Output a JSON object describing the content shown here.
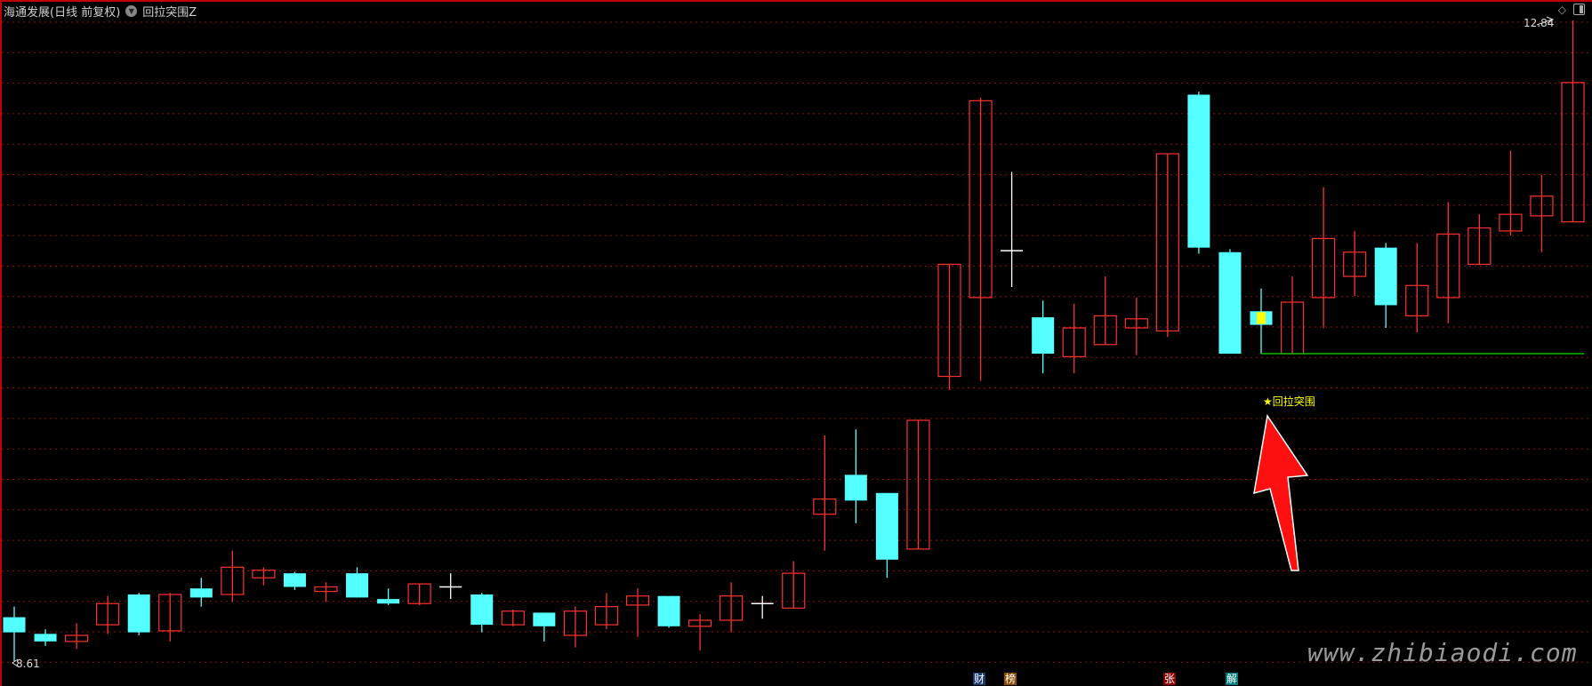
{
  "header": {
    "title": "海通发展(日线 前复权)",
    "indicator": "回拉突围Z"
  },
  "colors": {
    "up": "#ff3030",
    "down": "#54ffff",
    "doji": "#ffffff",
    "grid": "#8b1010",
    "support": "#00c000",
    "signal": "#ffff00",
    "arrow": "#ff1010"
  },
  "icons": {
    "dropdown": "chevron-down-circle-icon",
    "diamond": "diamond-icon",
    "panel": "panel-toggle-icon"
  },
  "price_labels": {
    "high": "12.84",
    "low": "8.61"
  },
  "signal_text": "★回拉突围",
  "watermark": "www.zhibiaodi.com",
  "badges": [
    {
      "label": "财",
      "color": "#1a3a70"
    },
    {
      "label": "榜",
      "color": "#8a4a00"
    },
    {
      "label": "张",
      "color": "#8a0000"
    },
    {
      "label": "解",
      "color": "#007a7a"
    }
  ],
  "chart_data": {
    "type": "candlestick",
    "ylim": [
      8.61,
      12.84
    ],
    "grid": true,
    "support_level": 10.64,
    "signal_index": 40,
    "candles": [
      [
        8.9,
        8.8,
        8.97,
        8.61
      ],
      [
        8.79,
        8.74,
        8.82,
        8.71
      ],
      [
        8.74,
        8.78,
        8.86,
        8.69
      ],
      [
        8.85,
        8.99,
        9.04,
        8.79
      ],
      [
        9.05,
        8.8,
        9.06,
        8.78
      ],
      [
        8.81,
        9.05,
        9.06,
        8.74
      ],
      [
        9.09,
        9.03,
        9.16,
        8.97
      ],
      [
        9.05,
        9.23,
        9.34,
        9.0
      ],
      [
        9.16,
        9.21,
        9.23,
        9.11
      ],
      [
        9.19,
        9.1,
        9.2,
        9.08
      ],
      [
        9.07,
        9.1,
        9.13,
        9.0
      ],
      [
        9.19,
        9.03,
        9.23,
        9.03
      ],
      [
        9.02,
        8.99,
        9.09,
        8.98
      ],
      [
        8.99,
        9.12,
        9.12,
        8.98
      ],
      [
        9.1,
        9.1,
        9.19,
        9.02
      ],
      [
        9.05,
        8.85,
        9.06,
        8.8
      ],
      [
        8.85,
        8.94,
        8.95,
        8.84
      ],
      [
        8.93,
        8.84,
        8.93,
        8.74
      ],
      [
        8.78,
        8.94,
        8.97,
        8.7
      ],
      [
        8.85,
        8.97,
        9.06,
        8.82
      ],
      [
        8.98,
        9.04,
        9.09,
        8.77
      ],
      [
        9.04,
        8.84,
        9.04,
        8.83
      ],
      [
        8.84,
        8.88,
        8.92,
        8.68
      ],
      [
        8.88,
        9.04,
        9.13,
        8.8
      ],
      [
        8.99,
        8.99,
        9.04,
        8.89
      ],
      [
        8.96,
        9.19,
        9.27,
        8.96
      ],
      [
        9.58,
        9.68,
        10.1,
        9.34
      ],
      [
        9.84,
        9.67,
        10.14,
        9.52
      ],
      [
        9.72,
        9.28,
        9.72,
        9.16
      ],
      [
        9.35,
        10.2,
        10.2,
        9.35
      ],
      [
        10.49,
        11.23,
        11.23,
        10.4
      ],
      [
        11.01,
        12.31,
        12.33,
        10.46
      ],
      [
        11.32,
        11.32,
        11.84,
        11.08
      ],
      [
        10.88,
        10.64,
        10.99,
        10.51
      ],
      [
        10.62,
        10.81,
        10.97,
        10.51
      ],
      [
        10.7,
        10.89,
        11.15,
        10.7
      ],
      [
        10.81,
        10.87,
        11.01,
        10.63
      ],
      [
        10.79,
        11.96,
        11.96,
        10.75
      ],
      [
        12.35,
        11.34,
        12.37,
        11.3
      ],
      [
        11.31,
        10.64,
        11.33,
        10.64
      ],
      [
        10.92,
        10.83,
        11.07,
        10.64
      ],
      [
        10.64,
        10.98,
        11.15,
        10.64
      ],
      [
        11.01,
        11.4,
        11.74,
        10.81
      ],
      [
        11.15,
        11.31,
        11.45,
        11.02
      ],
      [
        11.34,
        10.96,
        11.37,
        10.81
      ],
      [
        10.89,
        11.09,
        11.37,
        10.78
      ],
      [
        11.01,
        11.43,
        11.64,
        10.84
      ],
      [
        11.23,
        11.47,
        11.56,
        11.23
      ],
      [
        11.45,
        11.56,
        11.98,
        11.42
      ],
      [
        11.55,
        11.68,
        11.82,
        11.31
      ],
      [
        11.51,
        12.43,
        12.84,
        11.51
      ]
    ]
  }
}
